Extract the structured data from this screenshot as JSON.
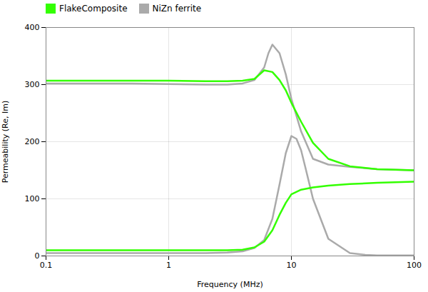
{
  "chart_data": {
    "type": "line",
    "xlabel": "Frequency (MHz)",
    "ylabel": "Permeability (Re, Im)",
    "log": "x",
    "xlim": [
      0.1,
      100
    ],
    "xticks": [
      0.1,
      1,
      10,
      100
    ],
    "ylim": [
      0,
      400
    ],
    "yticks": [
      0,
      100,
      200,
      300,
      400
    ],
    "grid": true,
    "legend": "top left",
    "series": [
      {
        "name": "NiZn ferrite",
        "color": "#aaaaaa",
        "x": [
          0.1,
          0.2,
          0.5,
          1.0,
          2.0,
          3.0,
          4.0,
          5.0,
          6.0,
          6.5,
          7.0,
          8.0,
          9.0,
          10.0,
          12.0,
          15.0,
          20.0,
          30.0,
          50.0,
          100.0
        ],
        "values": [
          302,
          302,
          302,
          301,
          300,
          300,
          302,
          308,
          330,
          355,
          370,
          355,
          318,
          275,
          218,
          170,
          160,
          156,
          152,
          150
        ]
      },
      {
        "name": "NiZn ferrite",
        "color": "#aaaaaa",
        "x": [
          0.1,
          0.2,
          0.5,
          1.0,
          2.0,
          3.0,
          4.0,
          5.0,
          6.0,
          7.0,
          8.0,
          9.0,
          10.0,
          11.0,
          12.0,
          13.0,
          15.0,
          20.0,
          30.0,
          40.0,
          50.0,
          70.0,
          100.0
        ],
        "values": [
          5,
          5,
          5,
          5,
          5,
          6,
          8,
          14,
          28,
          65,
          125,
          180,
          210,
          205,
          185,
          155,
          100,
          30,
          5,
          2,
          1,
          1,
          1
        ]
      },
      {
        "name": "FlakeComposite",
        "color": "#33ff00",
        "x": [
          0.1,
          0.2,
          0.5,
          1.0,
          2.0,
          3.0,
          4.0,
          5.0,
          6.0,
          7.0,
          8.0,
          9.0,
          10.0,
          12.0,
          15.0,
          20.0,
          30.0,
          50.0,
          100.0
        ],
        "values": [
          307,
          307,
          307,
          307,
          306,
          306,
          307,
          310,
          325,
          322,
          308,
          290,
          268,
          235,
          198,
          170,
          157,
          152,
          150
        ]
      },
      {
        "name": "FlakeComposite",
        "color": "#33ff00",
        "x": [
          0.1,
          0.2,
          0.5,
          1.0,
          2.0,
          3.0,
          4.0,
          5.0,
          6.0,
          7.0,
          8.0,
          9.0,
          10.0,
          12.0,
          15.0,
          20.0,
          30.0,
          50.0,
          100.0
        ],
        "values": [
          10,
          10,
          10,
          10,
          10,
          10,
          11,
          15,
          25,
          45,
          72,
          93,
          108,
          116,
          120,
          123,
          126,
          128,
          130
        ]
      }
    ]
  }
}
